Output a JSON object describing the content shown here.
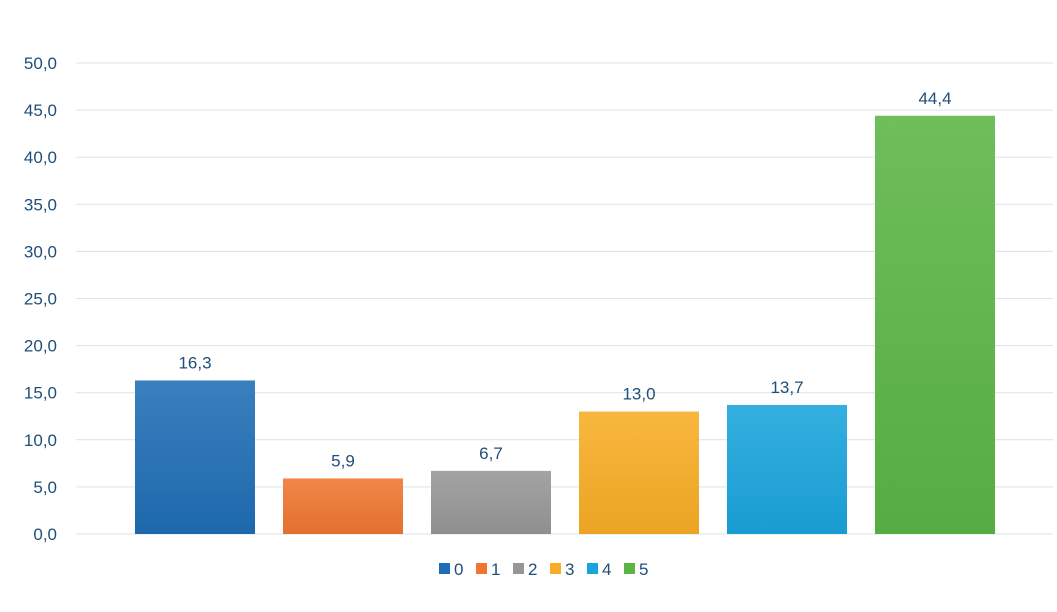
{
  "chart_data": {
    "type": "bar",
    "categories": [
      "0",
      "1",
      "2",
      "3",
      "4",
      "5"
    ],
    "values": [
      16.3,
      5.9,
      6.7,
      13.0,
      13.7,
      44.4
    ],
    "value_labels": [
      "16,3",
      "5,9",
      "6,7",
      "13,0",
      "13,7",
      "44,4"
    ],
    "ylim": [
      0,
      50
    ],
    "ytick_labels": [
      "0,0",
      "5,0",
      "10,0",
      "15,0",
      "20,0",
      "25,0",
      "30,0",
      "35,0",
      "40,0",
      "45,0",
      "50,0"
    ],
    "grid": true,
    "legend_position": "bottom",
    "colors": [
      "#1f6db5",
      "#ef7630",
      "#969696",
      "#f7ad25",
      "#1aa4dc",
      "#5ab545"
    ],
    "title": "",
    "xlabel": "",
    "ylabel": ""
  }
}
